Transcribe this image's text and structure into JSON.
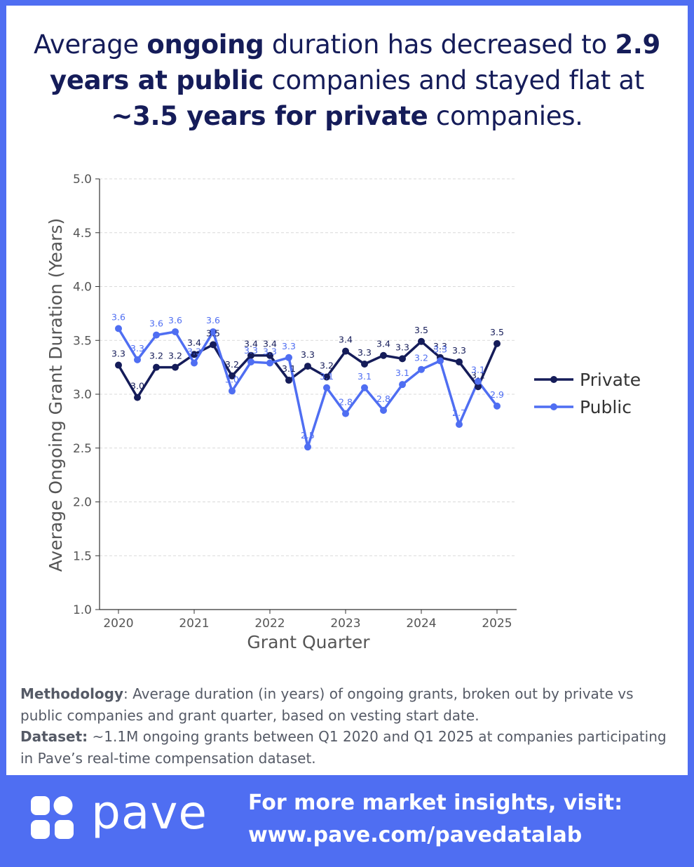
{
  "header": {
    "t1": "Average ",
    "t2": "ongoing",
    "t3": " duration has decreased to ",
    "t4": "2.9 years at public",
    "t5": " companies and stayed flat at ",
    "t6": "~3.5 years for private",
    "t7": " companies."
  },
  "chart_data": {
    "type": "line",
    "title": "",
    "xlabel": "Grant Quarter",
    "ylabel": "Average Ongoing Grant Duration (Years)",
    "ylim": [
      1.0,
      5.0
    ],
    "yticks": [
      "1.0",
      "1.5",
      "2.0",
      "2.5",
      "3.0",
      "3.5",
      "4.0",
      "4.5",
      "5.0"
    ],
    "xticks": [
      "2020",
      "2021",
      "2022",
      "2023",
      "2024",
      "2025"
    ],
    "x": [
      "2020 Q1",
      "2020 Q2",
      "2020 Q3",
      "2020 Q4",
      "2021 Q1",
      "2021 Q2",
      "2021 Q3",
      "2021 Q4",
      "2022 Q1",
      "2022 Q2",
      "2022 Q3",
      "2022 Q4",
      "2023 Q1",
      "2023 Q2",
      "2023 Q3",
      "2023 Q4",
      "2024 Q1",
      "2024 Q2",
      "2024 Q3",
      "2024 Q4",
      "2025 Q1"
    ],
    "grid": "horizontal dashed",
    "legend": "right",
    "series": [
      {
        "name": "Private",
        "color": "#151c59",
        "values": [
          3.27,
          2.97,
          3.25,
          3.25,
          3.37,
          3.46,
          3.17,
          3.36,
          3.36,
          3.13,
          3.26,
          3.16,
          3.4,
          3.28,
          3.36,
          3.33,
          3.49,
          3.34,
          3.3,
          3.07,
          3.47
        ],
        "labels": [
          "3.3",
          "3.0",
          "3.2",
          "3.2",
          "3.4",
          "3.5",
          "3.2",
          "3.4",
          "3.4",
          "3.1",
          "3.3",
          "3.2",
          "3.4",
          "3.3",
          "3.4",
          "3.3",
          "3.5",
          "3.3",
          "3.3",
          "3.1",
          "3.5"
        ]
      },
      {
        "name": "Public",
        "color": "#4f6ef2",
        "values": [
          3.61,
          3.32,
          3.55,
          3.58,
          3.29,
          3.58,
          3.03,
          3.3,
          3.29,
          3.34,
          2.51,
          3.06,
          2.82,
          3.06,
          2.85,
          3.09,
          3.23,
          3.31,
          2.72,
          3.12,
          2.89
        ],
        "labels": [
          "3.6",
          "3.3",
          "3.6",
          "3.6",
          "3.3",
          "3.6",
          "3.0",
          "3.3",
          "3.3",
          "3.3",
          "2.5",
          "3.1",
          "2.8",
          "3.1",
          "2.8",
          "3.1",
          "3.2",
          "3.3",
          "2.7",
          "3.1",
          "2.9"
        ]
      }
    ]
  },
  "methodology": {
    "label": "Methodology",
    "text": ": Average duration (in years) of ongoing grants, broken out by private vs public companies and grant quarter, based on vesting start date.",
    "dataset_label": "Dataset:",
    "dataset_text": " ~1.1M ongoing grants between Q1 2020 and Q1 2025 at companies participating in Pave’s real-time compensation dataset."
  },
  "footer": {
    "brand": "pave",
    "line1": "For more market insights, visit:",
    "line2": "www.pave.com/pavedatalab"
  },
  "colors": {
    "background": "#4f6ef2",
    "navy": "#151c59",
    "blue": "#4f6ef2"
  }
}
